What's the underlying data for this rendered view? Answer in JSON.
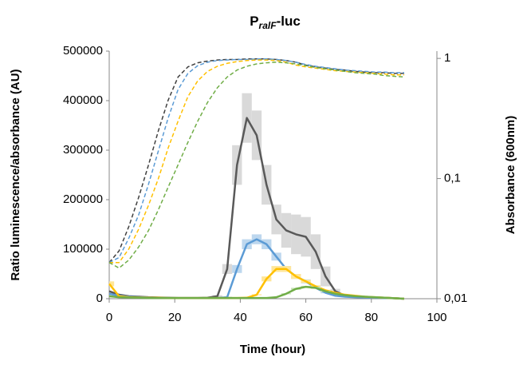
{
  "chart_data": {
    "type": "line",
    "title": [
      "P",
      "ralF",
      "-luc"
    ],
    "x_label": "Time (hour)",
    "y_label": "Ratio luminescence/absorbance (AU)",
    "y2_label": "Absorbance (600nm)",
    "x": [
      0,
      3,
      6,
      9,
      12,
      15,
      18,
      21,
      24,
      27,
      30,
      33,
      36,
      39,
      42,
      45,
      48,
      51,
      54,
      57,
      60,
      63,
      66,
      69,
      72,
      75,
      78,
      81,
      84,
      87,
      90
    ],
    "xlim": [
      0,
      100
    ],
    "xticks": [
      0,
      20,
      40,
      60,
      80,
      100
    ],
    "ylim": [
      0,
      500000
    ],
    "yticks": [
      0,
      100000,
      200000,
      300000,
      400000,
      500000
    ],
    "y2lim": [
      0.01,
      1.15
    ],
    "y2_log": true,
    "y2ticks": [
      {
        "value": 0.01,
        "label": "0,01"
      },
      {
        "value": 0.1,
        "label": "0,1"
      },
      {
        "value": 1,
        "label": "1"
      }
    ],
    "series": [
      {
        "color": "#595959",
        "band_color": "#d9d9d9",
        "line_style": "solid",
        "values": [
          15000,
          8000,
          5000,
          4000,
          3000,
          2500,
          2000,
          1500,
          1500,
          1500,
          2000,
          5000,
          60000,
          270000,
          365000,
          330000,
          230000,
          160000,
          138000,
          130000,
          125000,
          95000,
          45000,
          15000,
          6000,
          4000,
          3000,
          2500,
          2000,
          1000,
          0
        ],
        "error": [
          0,
          0,
          0,
          0,
          0,
          0,
          0,
          0,
          0,
          0,
          0,
          2000,
          10000,
          40000,
          50000,
          50000,
          40000,
          30000,
          35000,
          40000,
          40000,
          35000,
          20000,
          5000,
          0,
          0,
          0,
          0,
          0,
          0,
          0
        ]
      },
      {
        "color": "#5b9bd5",
        "band_color": "#bdd7ee",
        "line_style": "solid",
        "values": [
          10000,
          6000,
          4000,
          3000,
          2500,
          2000,
          1500,
          1500,
          1500,
          1500,
          1500,
          1500,
          3000,
          60000,
          110000,
          120000,
          110000,
          85000,
          60000,
          45000,
          35000,
          22000,
          12000,
          6000,
          4000,
          3000,
          2500,
          2000,
          1500,
          1000,
          0
        ],
        "error": [
          0,
          0,
          0,
          0,
          0,
          0,
          0,
          0,
          0,
          0,
          0,
          0,
          1000,
          8000,
          10000,
          10000,
          10000,
          8000,
          6000,
          5000,
          4000,
          2000,
          1000,
          0,
          0,
          0,
          0,
          0,
          0,
          0,
          0
        ]
      },
      {
        "color": "#ffc000",
        "band_color": "#ffe699",
        "line_style": "solid",
        "values": [
          30000,
          5000,
          3000,
          2500,
          2000,
          2000,
          1500,
          1500,
          1500,
          1500,
          1500,
          1500,
          1500,
          1500,
          2000,
          8000,
          40000,
          60000,
          60000,
          45000,
          35000,
          25000,
          17000,
          12000,
          8000,
          6000,
          4000,
          3000,
          2000,
          1000,
          0
        ],
        "error": [
          5000,
          0,
          0,
          0,
          0,
          0,
          0,
          0,
          0,
          0,
          0,
          0,
          0,
          0,
          0,
          1000,
          5000,
          6000,
          6000,
          5000,
          3000,
          2000,
          1000,
          0,
          0,
          0,
          0,
          0,
          0,
          0,
          0
        ]
      },
      {
        "color": "#70ad47",
        "band_color": "#c5e0b4",
        "line_style": "solid",
        "values": [
          5000,
          3000,
          2500,
          2000,
          1500,
          1500,
          1500,
          1500,
          1500,
          1500,
          1500,
          1500,
          1500,
          1500,
          1500,
          1500,
          1500,
          3000,
          10000,
          20000,
          24000,
          22000,
          15000,
          10000,
          7000,
          5000,
          4000,
          3000,
          2000,
          1000,
          0
        ],
        "error": [
          0,
          0,
          0,
          0,
          0,
          0,
          0,
          0,
          0,
          0,
          0,
          0,
          0,
          0,
          0,
          0,
          0,
          0,
          1000,
          2000,
          2000,
          2000,
          1000,
          0,
          0,
          0,
          0,
          0,
          0,
          0,
          0
        ]
      },
      {
        "color": "#404040",
        "line_style": "dashed",
        "axis": "y2",
        "values": [
          0.02,
          0.025,
          0.04,
          0.07,
          0.13,
          0.25,
          0.45,
          0.7,
          0.85,
          0.92,
          0.95,
          0.97,
          0.98,
          0.98,
          0.99,
          0.99,
          0.99,
          0.98,
          0.96,
          0.93,
          0.88,
          0.85,
          0.83,
          0.81,
          0.8,
          0.78,
          0.77,
          0.76,
          0.76,
          0.75,
          0.75
        ]
      },
      {
        "color": "#5b9bd5",
        "line_style": "dashed",
        "axis": "y2",
        "values": [
          0.02,
          0.022,
          0.032,
          0.05,
          0.09,
          0.17,
          0.32,
          0.55,
          0.75,
          0.87,
          0.93,
          0.96,
          0.97,
          0.98,
          0.98,
          0.99,
          0.99,
          0.98,
          0.96,
          0.93,
          0.89,
          0.86,
          0.84,
          0.82,
          0.8,
          0.79,
          0.78,
          0.77,
          0.77,
          0.76,
          0.76
        ]
      },
      {
        "color": "#ffc000",
        "line_style": "dashed",
        "axis": "y2",
        "values": [
          0.02,
          0.02,
          0.026,
          0.038,
          0.06,
          0.1,
          0.18,
          0.3,
          0.48,
          0.65,
          0.78,
          0.86,
          0.91,
          0.94,
          0.96,
          0.97,
          0.97,
          0.96,
          0.93,
          0.88,
          0.85,
          0.83,
          0.81,
          0.79,
          0.78,
          0.77,
          0.76,
          0.75,
          0.74,
          0.73,
          0.73
        ]
      },
      {
        "color": "#70ad47",
        "line_style": "dashed",
        "axis": "y2",
        "values": [
          0.02,
          0.018,
          0.021,
          0.027,
          0.037,
          0.055,
          0.085,
          0.13,
          0.2,
          0.3,
          0.43,
          0.57,
          0.7,
          0.8,
          0.86,
          0.9,
          0.92,
          0.93,
          0.92,
          0.9,
          0.87,
          0.84,
          0.82,
          0.8,
          0.78,
          0.76,
          0.75,
          0.74,
          0.72,
          0.71,
          0.7
        ]
      }
    ]
  }
}
